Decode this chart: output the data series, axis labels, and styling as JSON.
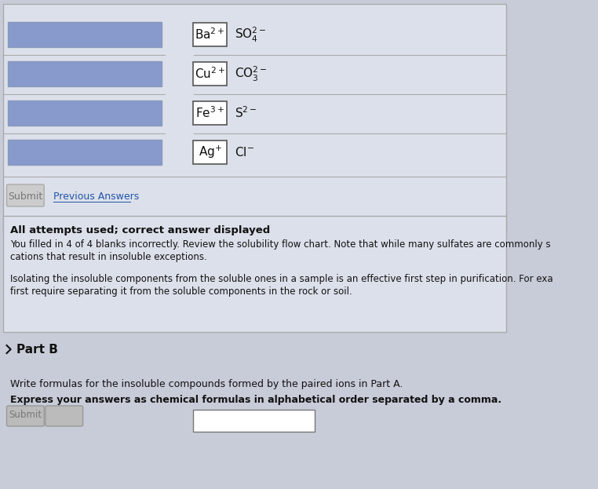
{
  "bg_color": "#d8dce8",
  "page_bg": "#c8ccd8",
  "box_bg": "#7a8aaa",
  "white": "#ffffff",
  "border_color": "#555555",
  "text_dark": "#111111",
  "text_medium": "#222222",
  "text_gray": "#444444",
  "rows": [
    {
      "cation": "Ba$^{2+}$",
      "anion": "SO$_4^{2-}$"
    },
    {
      "cation": "Cu$^{2+}$",
      "anion": "CO$_3^{2-}$"
    },
    {
      "cation": "Fe$^{3+}$",
      "anion": "S$^{2-}$"
    },
    {
      "cation": "Ag$^{+}$",
      "anion": "Cl$^{-}$"
    }
  ],
  "submit_text": "Submit",
  "prev_text": "Previous Answers",
  "feedback_bold": "All attempts used; correct answer displayed",
  "feedback_line1": "You filled in 4 of 4 blanks incorrectly. Review the solubility flow chart. Note that while many sulfates are commonly s",
  "feedback_line2": "cations that result in insoluble exceptions.",
  "feedback_line3": "Isolating the insoluble components from the soluble ones in a sample is an effective first step in purification. For exa",
  "feedback_line4": "first require separating it from the soluble components in the rock or soil.",
  "partB_label": "Part B",
  "partB_line1": "Write formulas for the insoluble compounds formed by the paired ions in Part A.",
  "partB_line2": "Express your answers as chemical formulas in alphabetical order separated by a comma."
}
